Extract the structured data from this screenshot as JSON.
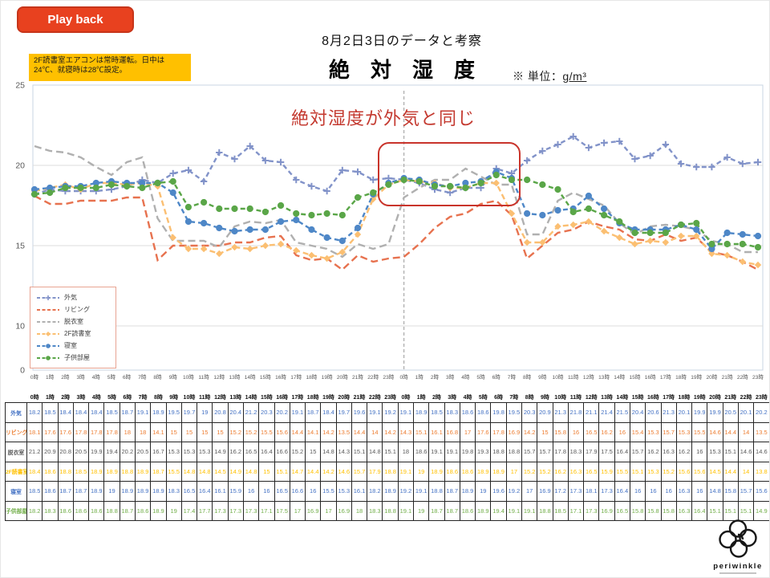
{
  "playback": {
    "label": "Play back"
  },
  "note_box": {
    "text": "2F読書室エアコンは常時運転。日中は24℃、就寝時は28℃設定。"
  },
  "header": {
    "subtitle": "8月2日3日のデータと考察",
    "title": "絶　対　湿　度",
    "unit_prefix": "※ 単位：",
    "unit_value": "g/m³"
  },
  "annotation": {
    "text": "絶対湿度が外気と同じ"
  },
  "logo": {
    "name": "periwinkle"
  },
  "chart_data": {
    "type": "line",
    "title": "絶対湿度 (g/m³)",
    "xlabel": "",
    "ylabel": "",
    "ylim": [
      0,
      25
    ],
    "yticks": [
      25,
      20,
      15,
      10,
      0
    ],
    "grid": "horizontal",
    "legend_position": "inside-bottom-left",
    "day_separator_index": 24,
    "x_labels": [
      "0時",
      "1時",
      "2時",
      "3時",
      "4時",
      "5時",
      "6時",
      "7時",
      "8時",
      "9時",
      "10時",
      "11時",
      "12時",
      "13時",
      "14時",
      "15時",
      "16時",
      "17時",
      "18時",
      "19時",
      "20時",
      "21時",
      "22時",
      "23時",
      "0時",
      "1時",
      "2時",
      "3時",
      "4時",
      "5時",
      "6時",
      "7時",
      "8時",
      "9時",
      "10時",
      "11時",
      "12時",
      "13時",
      "14時",
      "15時",
      "16時",
      "17時",
      "18時",
      "19時",
      "20時",
      "21時",
      "22時",
      "23時"
    ],
    "series": [
      {
        "name": "外気",
        "color": "#8293c9",
        "table_color": "#4472c4",
        "dash": "6 4",
        "marker": "plus",
        "values": [
          18.2,
          18.5,
          18.4,
          18.4,
          18.4,
          18.5,
          18.7,
          19.1,
          18.9,
          19.5,
          19.7,
          19,
          20.8,
          20.4,
          21.2,
          20.3,
          20.2,
          19.1,
          18.7,
          18.4,
          19.7,
          19.6,
          19.1,
          19.2,
          19.1,
          18.9,
          18.5,
          18.3,
          18.6,
          18.6,
          19.8,
          19.5,
          20.3,
          20.9,
          21.3,
          21.8,
          21.1,
          21.4,
          21.5,
          20.4,
          20.6,
          21.3,
          20.1,
          19.9,
          19.9,
          20.5,
          20.1,
          20.2
        ]
      },
      {
        "name": "リビング",
        "color": "#e7724f",
        "table_color": "#ed7d31",
        "dash": "9 5",
        "marker": "none",
        "values": [
          18.1,
          17.6,
          17.6,
          17.8,
          17.8,
          17.8,
          18,
          18,
          14.1,
          15,
          15,
          15,
          15,
          15.2,
          15.2,
          15.5,
          15.6,
          14.4,
          14.1,
          14.2,
          13.5,
          14.4,
          14,
          14.2,
          14.3,
          15.1,
          16.1,
          16.8,
          17,
          17.6,
          17.8,
          16.9,
          14.2,
          15,
          15.8,
          16,
          16.5,
          16.2,
          16,
          15.4,
          15.3,
          15.7,
          15.3,
          15.5,
          14.6,
          14.4,
          14,
          13.5
        ]
      },
      {
        "name": "脱衣室",
        "color": "#b0b0b0",
        "table_color": "#595959",
        "dash": "9 5",
        "marker": "none",
        "values": [
          21.2,
          20.9,
          20.8,
          20.5,
          19.9,
          19.4,
          20.2,
          20.5,
          16.7,
          15.3,
          15.3,
          15.3,
          14.9,
          16.2,
          16.5,
          16.4,
          16.6,
          15.2,
          15,
          14.8,
          14.3,
          15.1,
          14.8,
          15.1,
          18,
          18.6,
          19.1,
          19.1,
          19.8,
          19.3,
          18.8,
          18.8,
          15.7,
          15.7,
          17.8,
          18.3,
          17.9,
          17.5,
          16.4,
          15.7,
          16.2,
          16.3,
          16.2,
          16,
          15.3,
          15.1,
          14.6,
          14.6
        ]
      },
      {
        "name": "2F読書室",
        "color": "#fbbf72",
        "table_color": "#ffc000",
        "dash": "7 4",
        "marker": "diamond",
        "values": [
          18.4,
          18.6,
          18.8,
          18.5,
          18.9,
          18.9,
          18.8,
          18.9,
          18.7,
          15.5,
          14.8,
          14.8,
          14.5,
          14.9,
          14.8,
          15,
          15.1,
          14.7,
          14.4,
          14.2,
          14.6,
          15.7,
          17.9,
          18.8,
          19.1,
          19,
          18.9,
          18.6,
          18.6,
          18.9,
          18.9,
          17,
          15.2,
          15.2,
          16.2,
          16.3,
          16.5,
          15.9,
          15.5,
          15.1,
          15.3,
          15.2,
          15.6,
          15.6,
          14.5,
          14.4,
          14,
          13.8
        ]
      },
      {
        "name": "寝室",
        "color": "#4e87c7",
        "table_color": "#4472c4",
        "dash": "6 4",
        "marker": "circle",
        "values": [
          18.5,
          18.6,
          18.7,
          18.7,
          18.9,
          19,
          18.9,
          18.9,
          18.9,
          18.3,
          16.5,
          16.4,
          16.1,
          15.9,
          16,
          16,
          16.5,
          16.6,
          16,
          15.5,
          15.3,
          16.1,
          18.2,
          18.9,
          19.2,
          19.1,
          18.8,
          18.7,
          18.9,
          19,
          19.6,
          19.2,
          17,
          16.9,
          17.2,
          17.3,
          18.1,
          17.3,
          16.4,
          16,
          16,
          16,
          16.3,
          16,
          14.8,
          15.8,
          15.7,
          15.6
        ]
      },
      {
        "name": "子供部屋",
        "color": "#5aa648",
        "table_color": "#70ad47",
        "dash": "6 4",
        "marker": "circle",
        "values": [
          18.2,
          18.3,
          18.6,
          18.6,
          18.6,
          18.8,
          18.7,
          18.6,
          18.9,
          19,
          17.4,
          17.7,
          17.3,
          17.3,
          17.3,
          17.1,
          17.5,
          17,
          16.9,
          17,
          16.9,
          18,
          18.3,
          18.8,
          19.1,
          19,
          18.7,
          18.7,
          18.6,
          18.9,
          19.4,
          19.1,
          19.1,
          18.8,
          18.5,
          17.1,
          17.3,
          16.9,
          16.5,
          15.8,
          15.8,
          15.8,
          16.3,
          16.4,
          15.1,
          15.1,
          15.1,
          14.9
        ]
      }
    ]
  }
}
